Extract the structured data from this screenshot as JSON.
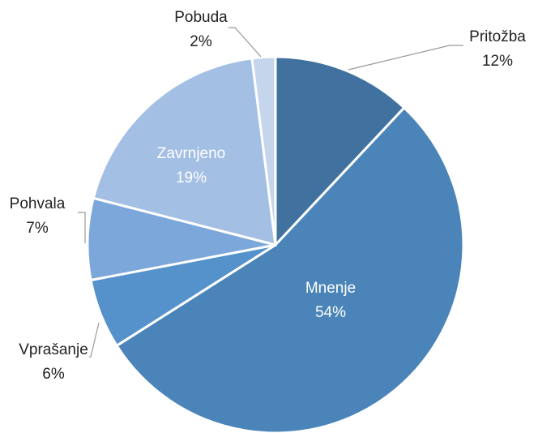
{
  "chart_data": {
    "type": "pie",
    "categories": [
      "Pritožba",
      "Mnenje",
      "Vprašanje",
      "Pohvala",
      "Zavrnjeno",
      "Pobuda"
    ],
    "values": [
      12,
      54,
      6,
      7,
      19,
      2
    ],
    "value_labels": [
      "12%",
      "54%",
      "6%",
      "7%",
      "19%",
      "2%"
    ],
    "colors": [
      "#41729f",
      "#4a84b8",
      "#5592cc",
      "#7ba7da",
      "#a3bfe3",
      "#c5d5ec"
    ]
  }
}
